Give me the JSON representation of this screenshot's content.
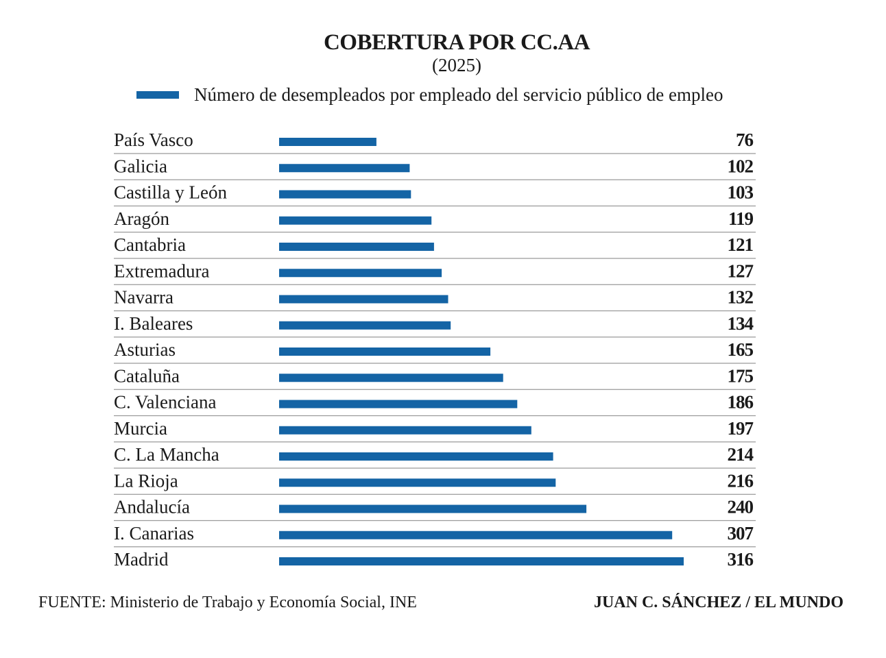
{
  "chart_data": {
    "type": "bar",
    "orientation": "horizontal",
    "title": "COBERTURA POR CC.AA",
    "subtitle": "(2025)",
    "legend": [
      "Número de desempleados por empleado del servicio público de empleo"
    ],
    "legend_placement": "top",
    "categories": [
      "País Vasco",
      "Galicia",
      "Castilla y León",
      "Aragón",
      "Cantabria",
      "Extremadura",
      "Navarra",
      "I. Baleares",
      "Asturias",
      "Cataluña",
      "C. Valenciana",
      "Murcia",
      "C. La Mancha",
      "La Rioja",
      "Andalucía",
      "I. Canarias",
      "Madrid"
    ],
    "series": [
      {
        "name": "Número de desempleados por empleado del servicio público de empleo",
        "values": [
          76,
          102,
          103,
          119,
          121,
          127,
          132,
          134,
          165,
          175,
          186,
          197,
          214,
          216,
          240,
          307,
          316
        ]
      }
    ],
    "value_labels": [
      "76",
      "102",
      "103",
      "119",
      "121",
      "127",
      "132",
      "134",
      "165",
      "175",
      "186",
      "197",
      "214",
      "216",
      "240",
      "307",
      "316"
    ],
    "grid": false,
    "bar_color": "#1464a5",
    "separator_color": "#9a9a9a"
  },
  "footer": {
    "source": "FUENTE: Ministerio de Trabajo y Economía Social, INE",
    "credit": "JUAN C. SÁNCHEZ / EL MUNDO"
  }
}
